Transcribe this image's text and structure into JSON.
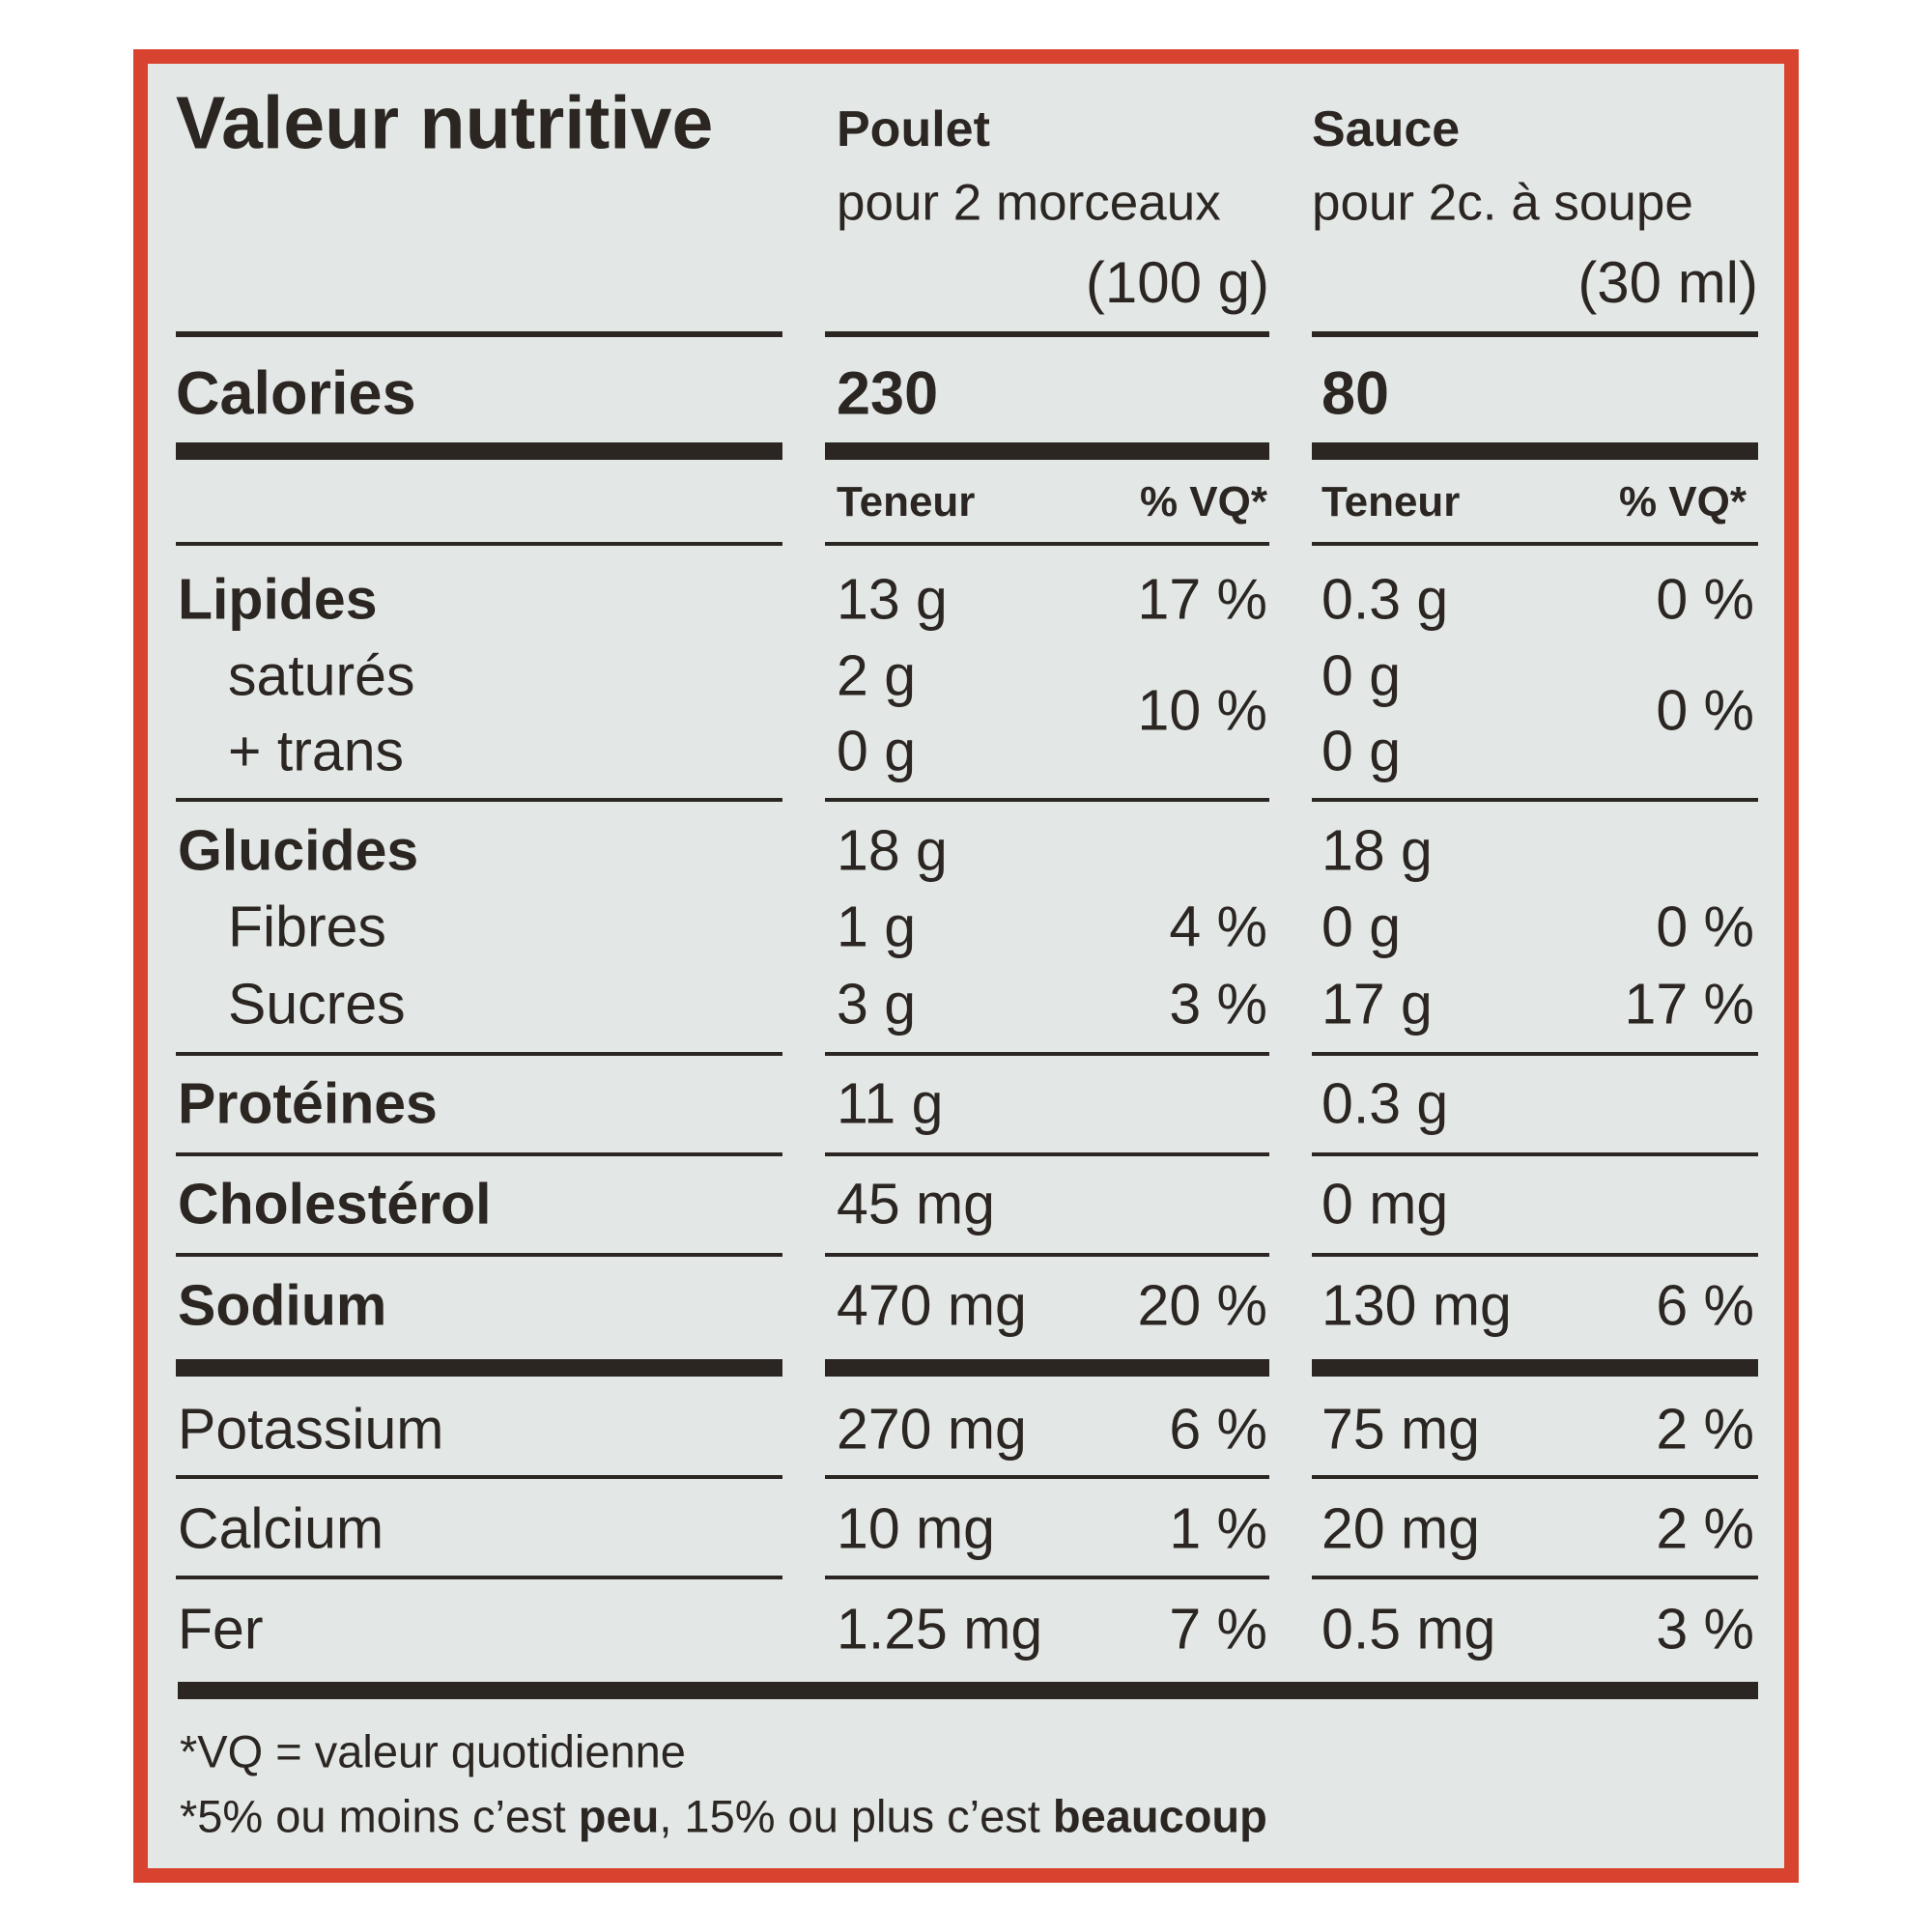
{
  "title": "Valeur nutritive",
  "columns": [
    {
      "name": "Poulet",
      "serving": "pour 2 morceaux",
      "serving_amount": "(100 g)",
      "calories": "230",
      "amount_header": "Teneur",
      "dv_header": "% VQ*"
    },
    {
      "name": "Sauce",
      "serving": "pour 2c. à soupe",
      "serving_amount": "(30 ml)",
      "calories": "80",
      "amount_header": "Teneur",
      "dv_header": "% VQ*"
    }
  ],
  "calories_label": "Calories",
  "rows": {
    "lipides": {
      "label": "Lipides",
      "p": "13 g",
      "pdv": "17 %",
      "s": "0.3 g",
      "sdv": "0 %"
    },
    "satures": {
      "label": "saturés",
      "p": "2 g",
      "s": "0 g"
    },
    "trans": {
      "label": "+ trans",
      "p": "0 g",
      "s": "0 g"
    },
    "sat_trans_dv": {
      "p": "10 %",
      "s": "0 %"
    },
    "glucides": {
      "label": "Glucides",
      "p": "18 g",
      "s": "18 g"
    },
    "fibres": {
      "label": "Fibres",
      "p": "1 g",
      "pdv": "4 %",
      "s": "0 g",
      "sdv": "0 %"
    },
    "sucres": {
      "label": "Sucres",
      "p": "3 g",
      "pdv": "3 %",
      "s": "17 g",
      "sdv": "17 %"
    },
    "proteines": {
      "label": "Protéines",
      "p": "11 g",
      "s": "0.3 g"
    },
    "cholesterol": {
      "label": "Cholestérol",
      "p": "45 mg",
      "s": "0 mg"
    },
    "sodium": {
      "label": "Sodium",
      "p": "470 mg",
      "pdv": "20 %",
      "s": "130 mg",
      "sdv": "6 %"
    },
    "potassium": {
      "label": "Potassium",
      "p": "270 mg",
      "pdv": "6 %",
      "s": "75 mg",
      "sdv": "2 %"
    },
    "calcium": {
      "label": "Calcium",
      "p": "10 mg",
      "pdv": "1 %",
      "s": "20 mg",
      "sdv": "2 %"
    },
    "fer": {
      "label": "Fer",
      "p": "1.25 mg",
      "pdv": "7 %",
      "s": "0.5 mg",
      "sdv": "3 %"
    }
  },
  "footnote": {
    "line1": "*VQ = valeur quotidienne",
    "line2_a": "*5% ou moins c’est ",
    "line2_b": "peu",
    "line2_c": ", 15% ou plus c’est ",
    "line2_d": "beaucoup"
  },
  "colors": {
    "border": "#d8432f",
    "background": "#e3e8e7",
    "text": "#2b2622"
  }
}
